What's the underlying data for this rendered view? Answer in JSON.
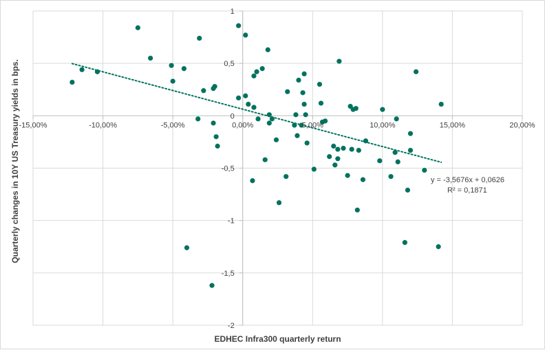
{
  "chart_data": {
    "type": "scatter",
    "title": "",
    "xlabel": "EDHEC Infra300 quarterly return",
    "ylabel": "Quarterly changes  in  10Y US  Treasury yields in  bps.",
    "xlim": [
      -0.15,
      0.2
    ],
    "ylim": [
      -2,
      1
    ],
    "x_ticks": [
      -0.15,
      -0.1,
      -0.05,
      0.0,
      0.05,
      0.1,
      0.15,
      0.2
    ],
    "x_tick_labels": [
      "-15,00%",
      "-10,00%",
      "-5,00%",
      "0,00%",
      "5,00%",
      "10,00%",
      "15,00%",
      "20,00%"
    ],
    "y_ticks": [
      1,
      0.5,
      0,
      -0.5,
      -1,
      -1.5,
      -2
    ],
    "y_tick_labels": [
      "1",
      "0,5",
      "0",
      "-0,5",
      "-1",
      "-1,5",
      "-2"
    ],
    "grid": true,
    "legend": "none",
    "point_color": "#00725e",
    "trendline": {
      "type": "linear",
      "slope": -3.5676,
      "intercept": 0.0626,
      "x_range": [
        -0.122,
        0.142
      ],
      "color": "#00725e",
      "style": "dotted",
      "equation_label": "y = -3,5676x + 0,0626",
      "r2_label": "R² = 0,1871"
    },
    "series": [
      {
        "points": [
          [
            -0.122,
            0.32
          ],
          [
            -0.115,
            0.44
          ],
          [
            -0.104,
            0.42
          ],
          [
            -0.075,
            0.84
          ],
          [
            -0.066,
            0.55
          ],
          [
            -0.051,
            0.48
          ],
          [
            -0.05,
            0.33
          ],
          [
            -0.042,
            0.45
          ],
          [
            -0.04,
            -1.26
          ],
          [
            -0.032,
            -0.03
          ],
          [
            -0.031,
            0.74
          ],
          [
            -0.028,
            0.24
          ],
          [
            -0.022,
            -1.62
          ],
          [
            -0.021,
            -0.07
          ],
          [
            -0.021,
            0.26
          ],
          [
            -0.02,
            0.28
          ],
          [
            -0.019,
            -0.2
          ],
          [
            -0.018,
            -0.29
          ],
          [
            -0.003,
            0.86
          ],
          [
            -0.003,
            0.17
          ],
          [
            0.002,
            0.77
          ],
          [
            0.002,
            0.19
          ],
          [
            0.004,
            0.11
          ],
          [
            0.007,
            -0.62
          ],
          [
            0.008,
            0.38
          ],
          [
            0.008,
            0.08
          ],
          [
            0.01,
            0.42
          ],
          [
            0.011,
            -0.03
          ],
          [
            0.014,
            0.45
          ],
          [
            0.016,
            -0.42
          ],
          [
            0.018,
            0.63
          ],
          [
            0.019,
            0.01
          ],
          [
            0.019,
            -0.07
          ],
          [
            0.021,
            -0.03
          ],
          [
            0.024,
            -0.23
          ],
          [
            0.026,
            -0.83
          ],
          [
            0.031,
            -0.58
          ],
          [
            0.032,
            0.23
          ],
          [
            0.037,
            -0.09
          ],
          [
            0.038,
            0.01
          ],
          [
            0.039,
            -0.19
          ],
          [
            0.04,
            0.34
          ],
          [
            0.042,
            -0.09
          ],
          [
            0.043,
            0.22
          ],
          [
            0.044,
            0.4
          ],
          [
            0.044,
            0.11
          ],
          [
            0.045,
            0.01
          ],
          [
            0.046,
            -0.26
          ],
          [
            0.051,
            -0.51
          ],
          [
            0.055,
            0.3
          ],
          [
            0.056,
            0.12
          ],
          [
            0.057,
            -0.06
          ],
          [
            0.059,
            -0.05
          ],
          [
            0.062,
            -0.39
          ],
          [
            0.065,
            -0.29
          ],
          [
            0.066,
            -0.47
          ],
          [
            0.068,
            -0.32
          ],
          [
            0.068,
            -0.41
          ],
          [
            0.069,
            0.52
          ],
          [
            0.072,
            -0.31
          ],
          [
            0.075,
            -0.57
          ],
          [
            0.077,
            0.09
          ],
          [
            0.078,
            -0.32
          ],
          [
            0.079,
            0.06
          ],
          [
            0.081,
            0.07
          ],
          [
            0.082,
            -0.9
          ],
          [
            0.083,
            -0.33
          ],
          [
            0.086,
            -0.61
          ],
          [
            0.088,
            -0.24
          ],
          [
            0.098,
            -0.43
          ],
          [
            0.1,
            0.06
          ],
          [
            0.106,
            -0.58
          ],
          [
            0.109,
            -0.35
          ],
          [
            0.11,
            -0.03
          ],
          [
            0.111,
            -0.44
          ],
          [
            0.116,
            -1.21
          ],
          [
            0.118,
            -0.71
          ],
          [
            0.12,
            -0.17
          ],
          [
            0.12,
            -0.33
          ],
          [
            0.124,
            0.42
          ],
          [
            0.13,
            -0.52
          ],
          [
            0.14,
            -1.25
          ],
          [
            0.142,
            0.11
          ]
        ]
      }
    ]
  }
}
